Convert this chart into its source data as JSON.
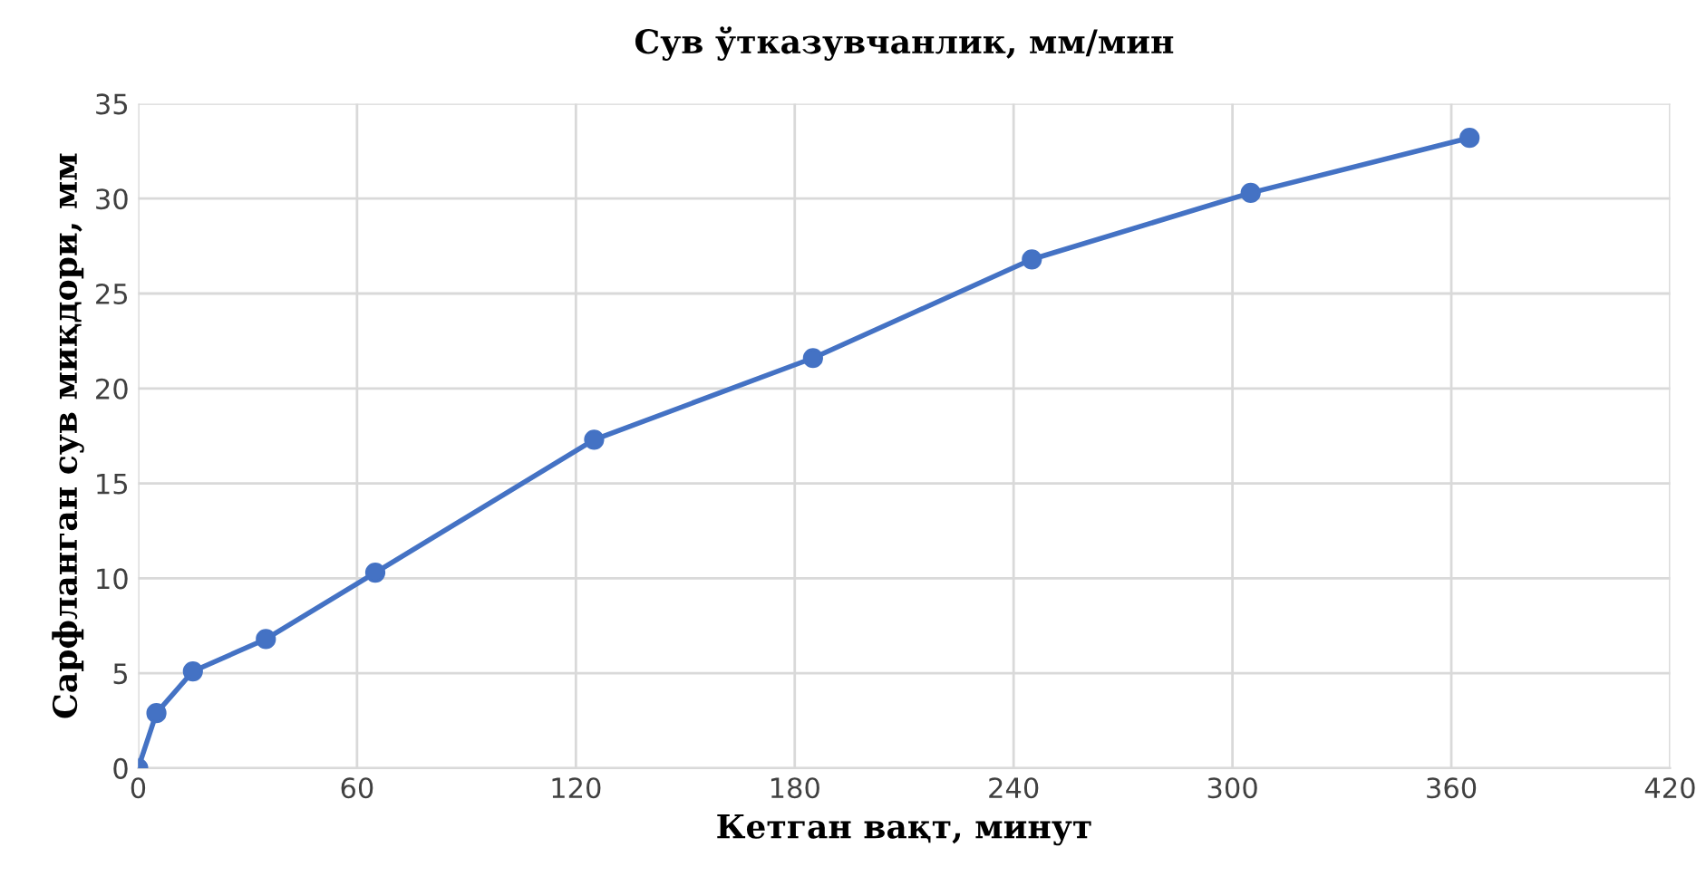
{
  "chart_data": {
    "type": "line",
    "title": "Сув ўтказувчанлик, мм/мин",
    "xlabel": "Кетган вақт, минут",
    "ylabel": "Сарфланган сув миқдори, мм",
    "x": [
      0,
      5,
      15,
      35,
      65,
      125,
      185,
      245,
      305,
      365
    ],
    "series": [
      {
        "color": "#4472c4",
        "values": [
          0,
          2.9,
          5.1,
          6.8,
          10.3,
          17.3,
          21.6,
          26.8,
          30.3,
          33.2
        ]
      }
    ],
    "xlim": [
      0,
      420
    ],
    "xticks": [
      0,
      60,
      120,
      180,
      240,
      300,
      360,
      420
    ],
    "ylim": [
      0,
      35
    ],
    "yticks": [
      0,
      5,
      10,
      15,
      20,
      25,
      30,
      35
    ],
    "grid": true,
    "marker": "circle",
    "line_style": "solid"
  }
}
